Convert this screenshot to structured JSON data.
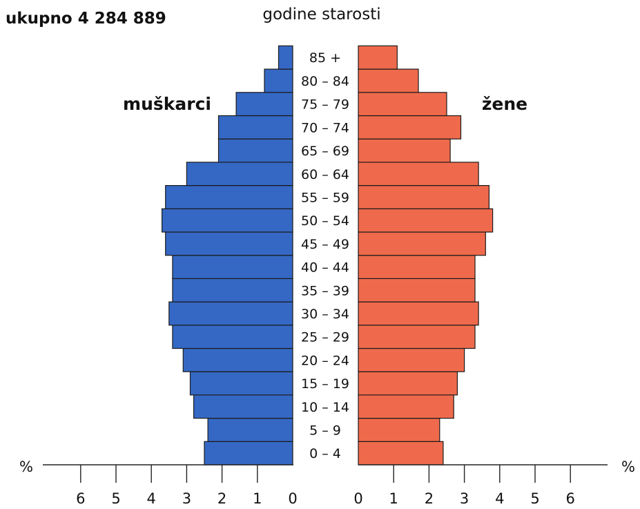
{
  "chart_data": {
    "type": "bar",
    "orientation": "horizontal",
    "subtype": "population-pyramid",
    "total_label": "ukupno 4 284 889",
    "age_axis_title": "godine starosti",
    "unit_left": "%",
    "unit_right": "%",
    "categories": [
      "0 – 4",
      "5 – 9",
      "10 – 14",
      "15 – 19",
      "20 – 24",
      "25 – 29",
      "30 – 34",
      "35 – 39",
      "40 – 44",
      "45 – 49",
      "50 – 54",
      "55 – 59",
      "60 – 64",
      "65 – 69",
      "70 – 74",
      "75 – 79",
      "80 – 84",
      "85 +"
    ],
    "series": [
      {
        "name": "muškarci",
        "side": "left",
        "color": "#3568c4",
        "values": [
          2.5,
          2.4,
          2.8,
          2.9,
          3.1,
          3.4,
          3.5,
          3.4,
          3.4,
          3.6,
          3.7,
          3.6,
          3.0,
          2.1,
          2.1,
          1.6,
          0.8,
          0.4
        ]
      },
      {
        "name": "žene",
        "side": "right",
        "color": "#ef6a4c",
        "values": [
          2.4,
          2.3,
          2.7,
          2.8,
          3.0,
          3.3,
          3.4,
          3.3,
          3.3,
          3.6,
          3.8,
          3.7,
          3.4,
          2.6,
          2.9,
          2.5,
          1.7,
          1.1
        ]
      }
    ],
    "left_ticks": [
      "6",
      "5",
      "4",
      "3",
      "2",
      "1",
      "0"
    ],
    "right_ticks": [
      "0",
      "1",
      "2",
      "3",
      "4",
      "5",
      "6"
    ],
    "xlim": [
      0,
      6
    ],
    "grid": false,
    "legend": "none"
  }
}
